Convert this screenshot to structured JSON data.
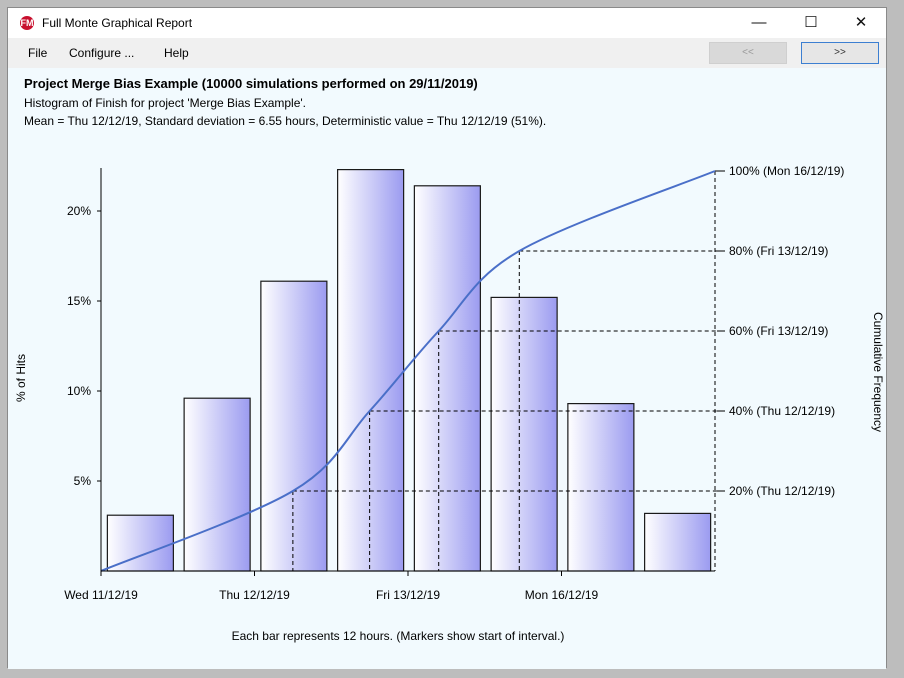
{
  "window": {
    "title": "Full Monte Graphical Report",
    "controls": {
      "minimize": "—",
      "maximize": "☐",
      "close": "✕"
    }
  },
  "menu": {
    "items": [
      "File",
      "Configure ...",
      "Help"
    ],
    "prev_label": "<<",
    "next_label": ">>"
  },
  "report": {
    "title": "Project Merge Bias Example (10000 simulations performed on 29/11/2019)",
    "subtitle": "Histogram of Finish for project 'Merge Bias Example'.",
    "stats": "Mean = Thu 12/12/19, Standard deviation = 6.55 hours, Deterministic value = Thu 12/12/19 (51%)."
  },
  "colors": {
    "bar_fill_light": "#ffffff",
    "bar_fill_dark": "#9b9bf0",
    "bar_stroke": "#1a1a1a",
    "curve": "#4a6fc8",
    "background": "#f2fafe"
  },
  "chart_data": {
    "type": "bar",
    "ylabel": "% of Hits",
    "y2label": "Cumulative Frequency",
    "xlabel": "Each bar represents 12 hours.  (Markers show start of interval.)",
    "ylim": [
      0,
      22.5
    ],
    "yticks": [
      {
        "value": 5,
        "label": "5%"
      },
      {
        "value": 10,
        "label": "10%"
      },
      {
        "value": 15,
        "label": "15%"
      },
      {
        "value": 20,
        "label": "20%"
      }
    ],
    "values": [
      3.1,
      9.6,
      16.1,
      22.3,
      21.4,
      15.2,
      9.3,
      3.2
    ],
    "xticks": [
      {
        "bar_index": 0,
        "label": "Wed 11/12/19"
      },
      {
        "bar_index": 2,
        "label": "Thu 12/12/19"
      },
      {
        "bar_index": 4,
        "label": "Fri 13/12/19"
      },
      {
        "bar_index": 6,
        "label": "Mon 16/12/19"
      }
    ],
    "cumulative": {
      "markers": [
        {
          "pct": 20,
          "label": "20% (Thu 12/12/19)",
          "bar_pos": 2.5
        },
        {
          "pct": 40,
          "label": "40% (Thu 12/12/19)",
          "bar_pos": 3.5
        },
        {
          "pct": 60,
          "label": "60% (Fri 13/12/19)",
          "bar_pos": 4.4
        },
        {
          "pct": 80,
          "label": "80% (Fri 13/12/19)",
          "bar_pos": 5.45
        },
        {
          "pct": 100,
          "label": "100% (Mon 16/12/19)",
          "bar_pos": 8
        }
      ]
    }
  }
}
